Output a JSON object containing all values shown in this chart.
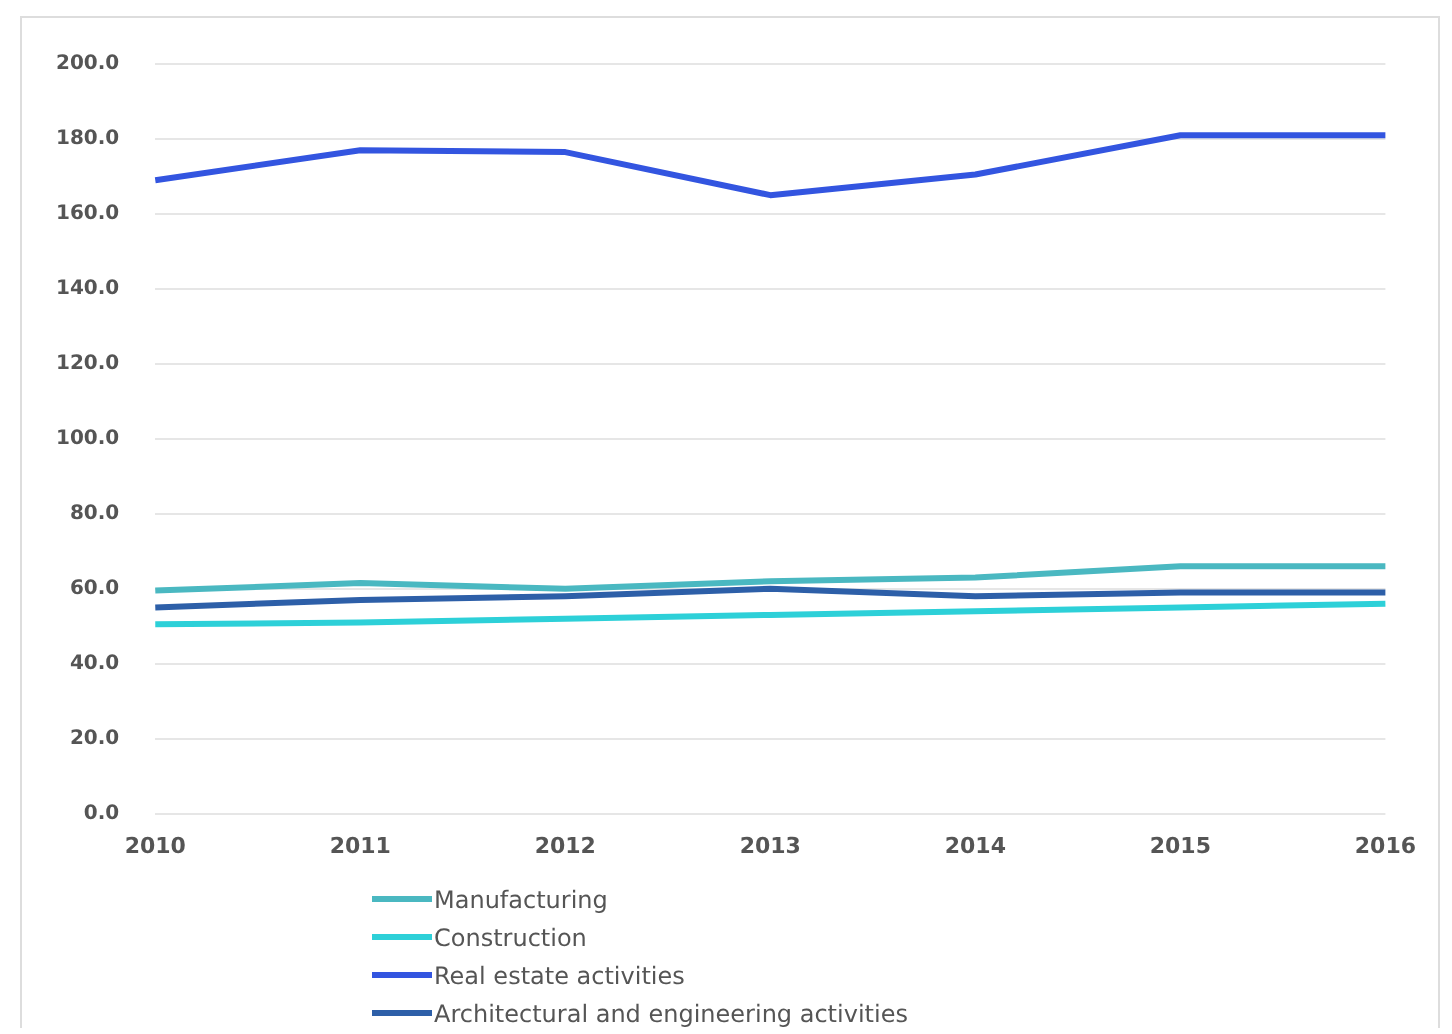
{
  "chart_data": {
    "type": "line",
    "categories": [
      "2010",
      "2011",
      "2012",
      "2013",
      "2014",
      "2015",
      "2016"
    ],
    "series": [
      {
        "name": "Manufacturing",
        "color": "#4ab8c1",
        "values": [
          59.5,
          61.5,
          60,
          62,
          63,
          66,
          66
        ]
      },
      {
        "name": "Construction",
        "color": "#2dd0d8",
        "values": [
          50.5,
          51,
          52,
          53,
          54,
          55,
          56
        ]
      },
      {
        "name": "Real estate activities",
        "color": "#3355e0",
        "values": [
          169,
          177,
          176.5,
          165,
          170.5,
          181,
          181
        ]
      },
      {
        "name": "Architectural and engineering activities",
        "color": "#2d5fa8",
        "values": [
          55,
          57,
          58,
          60,
          58,
          59,
          59
        ]
      }
    ],
    "ylim": [
      0,
      200
    ],
    "yticks": [
      {
        "value": 0,
        "label": "0.0"
      },
      {
        "value": 20,
        "label": "20.0"
      },
      {
        "value": 40,
        "label": "40.0"
      },
      {
        "value": 60,
        "label": "60.0"
      },
      {
        "value": 80,
        "label": "80.0"
      },
      {
        "value": 100,
        "label": "100.0"
      },
      {
        "value": 120,
        "label": "120.0"
      },
      {
        "value": 140,
        "label": "140.0"
      },
      {
        "value": 160,
        "label": "160.0"
      },
      {
        "value": 180,
        "label": "180.0"
      },
      {
        "value": 200,
        "label": "200.0"
      }
    ],
    "grid": "y",
    "legend": "bottom",
    "marker": "none",
    "line_style": "solid"
  }
}
